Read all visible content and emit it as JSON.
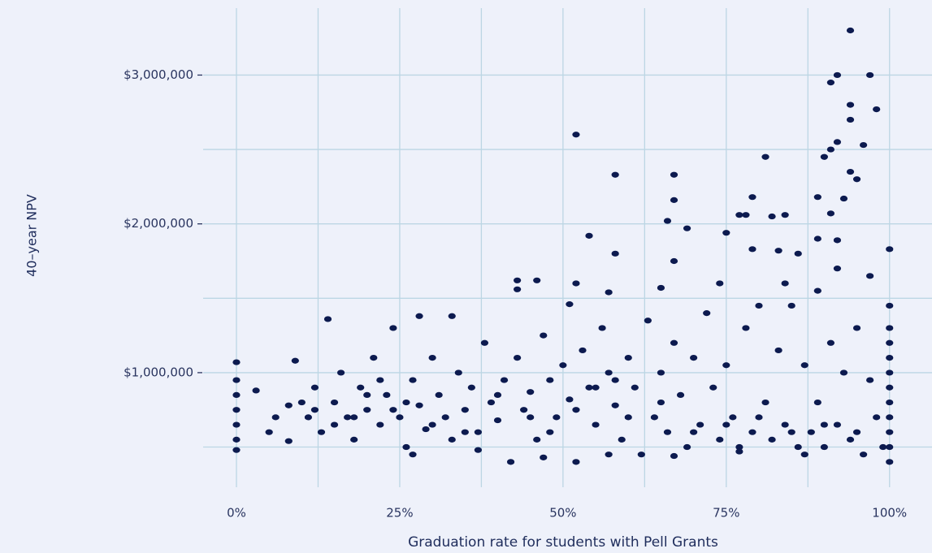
{
  "chart_data": {
    "type": "scatter",
    "x_label": "Graduation rate for students with Pell Grants",
    "y_label": "40–year NPV",
    "color": "#0c1a4f",
    "grid": true,
    "xlim": [
      -5.1,
      106.5
    ],
    "ylim": [
      230000,
      3450000
    ],
    "xticks": [
      {
        "value": 0,
        "label": "0%"
      },
      {
        "value": 25,
        "label": "25%"
      },
      {
        "value": 50,
        "label": "50%"
      },
      {
        "value": 75,
        "label": "75%"
      },
      {
        "value": 100,
        "label": "100%"
      }
    ],
    "yticks": [
      {
        "value": 1000000,
        "label": "$1,000,000"
      },
      {
        "value": 2000000,
        "label": "$2,000,000"
      },
      {
        "value": 3000000,
        "label": "$3,000,000"
      }
    ],
    "xminor": [
      12.5,
      37.5,
      62.5,
      87.5
    ],
    "yminor": [
      500000,
      1500000,
      2500000
    ],
    "x": [
      94,
      92,
      97,
      91,
      98,
      94,
      94,
      52,
      92,
      96,
      91,
      81,
      90,
      94,
      58,
      67,
      95,
      93,
      67,
      89,
      79,
      77,
      78,
      82,
      84,
      91,
      66,
      69,
      75,
      54,
      89,
      92,
      100,
      58,
      79,
      83,
      86,
      67,
      92,
      97,
      43,
      46,
      52,
      43,
      57,
      65,
      74,
      84,
      89,
      100,
      100,
      100,
      100,
      100,
      100,
      100,
      100,
      100,
      100,
      100,
      0,
      0,
      0,
      0,
      0,
      0,
      0,
      14,
      28,
      33,
      24,
      51,
      9,
      3,
      5,
      8,
      8,
      11,
      12,
      13,
      15,
      16,
      17,
      18,
      19,
      20,
      21,
      22,
      23,
      25,
      26,
      27,
      28,
      29,
      30,
      31,
      32,
      33,
      34,
      35,
      36,
      37,
      38,
      39,
      40,
      41,
      42,
      43,
      44,
      45,
      46,
      47,
      48,
      49,
      50,
      51,
      52,
      53,
      54,
      55,
      56,
      57,
      58,
      59,
      60,
      61,
      62,
      63,
      64,
      65,
      66,
      67,
      68,
      69,
      70,
      71,
      72,
      73,
      74,
      75,
      76,
      77,
      78,
      79,
      80,
      81,
      82,
      83,
      84,
      85,
      86,
      87,
      88,
      89,
      90,
      91,
      92,
      93,
      94,
      95,
      96,
      97,
      98,
      99,
      20,
      22,
      24,
      26,
      18,
      30,
      35,
      40,
      45,
      48,
      52,
      55,
      58,
      60,
      65,
      70,
      75,
      80,
      85,
      90,
      15,
      12,
      10,
      6,
      27,
      37,
      47,
      57,
      67,
      77,
      87,
      95
    ],
    "y": [
      3300000,
      3000000,
      3000000,
      2950000,
      2770000,
      2800000,
      2700000,
      2600000,
      2550000,
      2530000,
      2500000,
      2450000,
      2450000,
      2350000,
      2330000,
      2330000,
      2300000,
      2170000,
      2160000,
      2180000,
      2180000,
      2060000,
      2060000,
      2050000,
      2060000,
      2070000,
      2020000,
      1970000,
      1940000,
      1920000,
      1900000,
      1890000,
      1830000,
      1800000,
      1830000,
      1820000,
      1800000,
      1750000,
      1700000,
      1650000,
      1620000,
      1620000,
      1600000,
      1560000,
      1540000,
      1570000,
      1600000,
      1600000,
      1550000,
      1450000,
      1300000,
      1200000,
      1100000,
      1000000,
      900000,
      800000,
      700000,
      600000,
      500000,
      400000,
      1070000,
      950000,
      850000,
      750000,
      650000,
      550000,
      480000,
      1360000,
      1380000,
      1380000,
      1300000,
      1460000,
      1080000,
      880000,
      600000,
      780000,
      540000,
      700000,
      900000,
      600000,
      800000,
      1000000,
      700000,
      550000,
      900000,
      750000,
      1100000,
      650000,
      850000,
      700000,
      500000,
      950000,
      780000,
      620000,
      1100000,
      850000,
      700000,
      550000,
      1000000,
      750000,
      900000,
      600000,
      1200000,
      800000,
      680000,
      950000,
      400000,
      1100000,
      750000,
      870000,
      550000,
      1250000,
      950000,
      700000,
      1050000,
      820000,
      400000,
      1150000,
      900000,
      650000,
      1300000,
      1000000,
      780000,
      550000,
      1100000,
      900000,
      450000,
      1350000,
      700000,
      1000000,
      600000,
      1200000,
      850000,
      500000,
      1100000,
      650000,
      1400000,
      900000,
      550000,
      1050000,
      700000,
      500000,
      1300000,
      600000,
      1450000,
      800000,
      550000,
      1150000,
      650000,
      1450000,
      500000,
      1050000,
      600000,
      800000,
      500000,
      1200000,
      650000,
      1000000,
      550000,
      1300000,
      450000,
      950000,
      700000,
      500000,
      850000,
      950000,
      750000,
      800000,
      700000,
      650000,
      600000,
      850000,
      700000,
      600000,
      750000,
      900000,
      950000,
      700000,
      800000,
      600000,
      650000,
      700000,
      600000,
      650000,
      650000,
      750000,
      800000,
      700000,
      450000,
      480000,
      430000,
      450000,
      440000,
      470000,
      450000,
      600000
    ]
  }
}
